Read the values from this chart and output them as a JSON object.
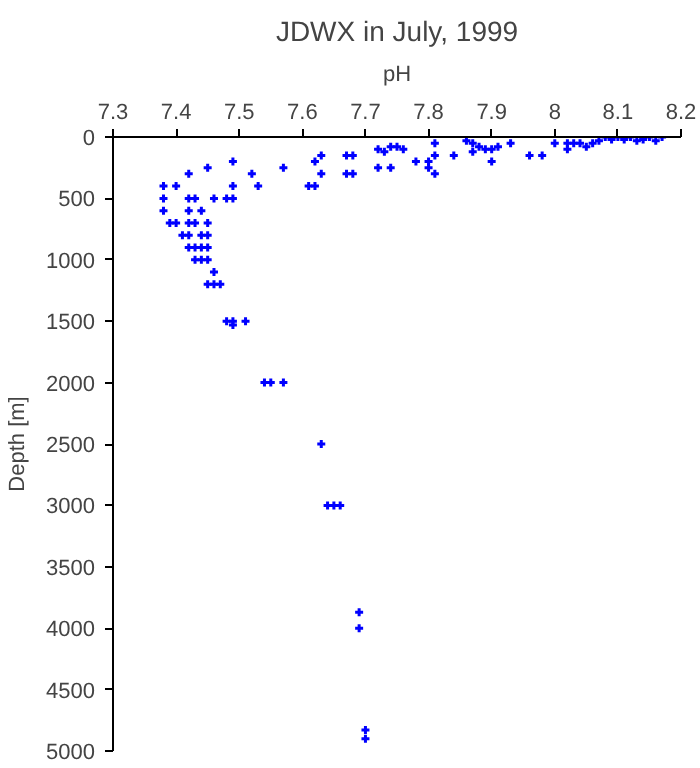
{
  "chart_data": {
    "type": "scatter",
    "title": "JDWX in July, 1999",
    "xlabel": "pH",
    "ylabel": "Depth [m]",
    "x": [
      8.08,
      8.1,
      8.12,
      8.15,
      8.17,
      8.09,
      8.11,
      8.14,
      8.06,
      8.03,
      8.02,
      8.05,
      8.0,
      8.02,
      8.04,
      8.13,
      8.16,
      8.07,
      7.98,
      7.96,
      7.93,
      7.9,
      7.91,
      7.88,
      7.87,
      7.86,
      7.87,
      7.89,
      7.9,
      7.84,
      7.81,
      7.81,
      7.8,
      7.8,
      7.81,
      7.78,
      7.76,
      7.75,
      7.74,
      7.73,
      7.72,
      7.74,
      7.72,
      7.68,
      7.67,
      7.68,
      7.67,
      7.63,
      7.62,
      7.63,
      7.61,
      7.62,
      7.57,
      7.53,
      7.52,
      7.49,
      7.49,
      7.48,
      7.49,
      7.46,
      7.45,
      7.42,
      7.4,
      7.38,
      7.38,
      7.38,
      7.39,
      7.4,
      7.42,
      7.43,
      7.42,
      7.44,
      7.42,
      7.43,
      7.45,
      7.41,
      7.42,
      7.44,
      7.45,
      7.42,
      7.43,
      7.44,
      7.45,
      7.43,
      7.44,
      7.45,
      7.46,
      7.45,
      7.46,
      7.47,
      7.48,
      7.49,
      7.49,
      7.51,
      7.54,
      7.55,
      7.57,
      7.63,
      7.64,
      7.65,
      7.66,
      7.69,
      7.69,
      7.7,
      7.7
    ],
    "series": [
      {
        "color": "#0000ff",
        "values": [
          0,
          0,
          0,
          0,
          0,
          20,
          20,
          20,
          50,
          50,
          50,
          80,
          50,
          100,
          50,
          30,
          30,
          30,
          150,
          150,
          50,
          100,
          80,
          80,
          50,
          30,
          120,
          100,
          200,
          150,
          50,
          150,
          200,
          250,
          300,
          200,
          100,
          80,
          80,
          120,
          100,
          250,
          250,
          150,
          150,
          300,
          300,
          150,
          200,
          300,
          400,
          400,
          250,
          400,
          300,
          200,
          400,
          500,
          500,
          500,
          250,
          300,
          400,
          400,
          500,
          600,
          700,
          700,
          500,
          500,
          600,
          600,
          700,
          700,
          700,
          800,
          800,
          800,
          800,
          900,
          900,
          900,
          900,
          1000,
          1000,
          1000,
          1100,
          1200,
          1200,
          1200,
          1500,
          1500,
          1530,
          1500,
          2000,
          2000,
          2000,
          2500,
          3000,
          3000,
          3000,
          3870,
          4000,
          4830,
          4900
        ]
      }
    ],
    "xlim": [
      7.3,
      8.2
    ],
    "xticks": [
      7.3,
      7.4,
      7.5,
      7.6,
      7.7,
      7.8,
      7.9,
      8,
      8.1,
      8.2
    ],
    "ylim": [
      5000,
      0
    ],
    "yticks": [
      0,
      500,
      1000,
      1500,
      2000,
      2500,
      3000,
      3500,
      4000,
      4500,
      5000
    ],
    "marker": "cross",
    "grid": false
  }
}
